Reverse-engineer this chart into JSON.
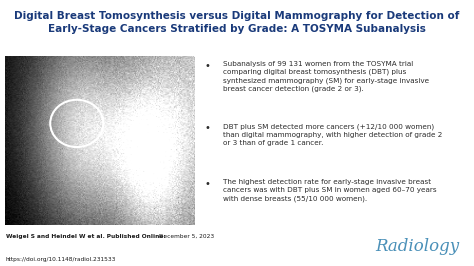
{
  "title_line1": "Digital Breast Tomosynthesis versus Digital Mammography for Detection of",
  "title_line2": "Early-Stage Cancers Stratified by Grade: A TOSYMA Subanalysis",
  "title_color": "#1a3a7a",
  "title_fontsize": 7.5,
  "bg_color": "#ffffff",
  "footer_bg": "#d8e8f0",
  "bullet_points": [
    "Subanalysis of 99 131 women from the TOSYMA trial\ncomparing digital breast tomosynthesis (DBT) plus\nsynthesized mammography (SM) for early-stage invasive\nbreast cancer detection (grade 2 or 3).",
    "DBT plus SM detected more cancers (+12/10 000 women)\nthan digital mammography, with higher detection of grade 2\nor 3 than of grade 1 cancer.",
    "The highest detection rate for early-stage invasive breast\ncancers was with DBT plus SM in women aged 60–70 years\nwith dense breasts (55/10 000 women)."
  ],
  "bullet_color": "#2c2c2c",
  "bullet_fontsize": 5.2,
  "footer_left_bold": "Weigel S and Heindel W et al. Published Online:",
  "footer_left_date": " December 5, 2023",
  "footer_url": "https://doi.org/10.1148/radiol.231533",
  "footer_fontsize": 4.2,
  "radiology_text": "Radiology",
  "radiology_color": "#4a90b8",
  "radiology_fontsize": 12
}
